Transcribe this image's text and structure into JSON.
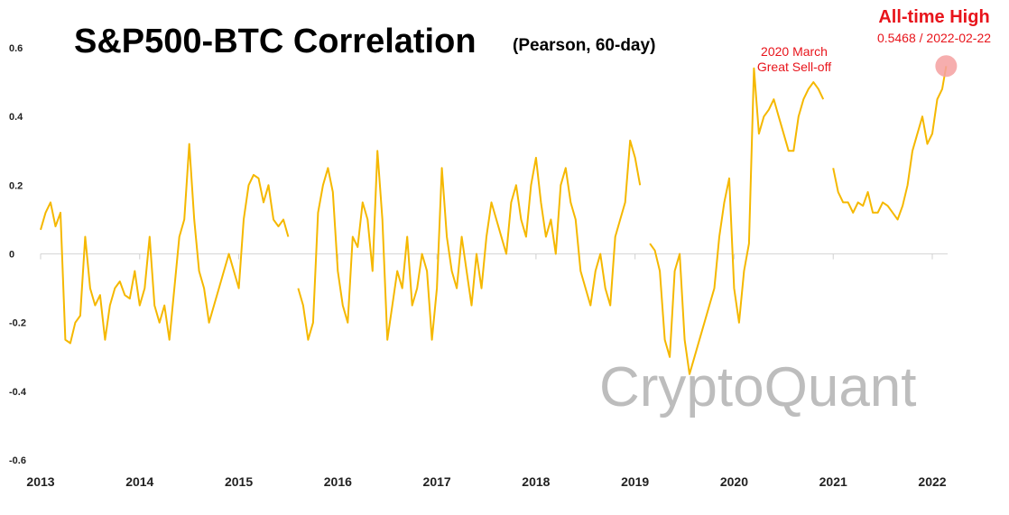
{
  "chart_data": {
    "type": "line",
    "title": "S&P500-BTC Correlation",
    "subtitle": "(Pearson, 60-day)",
    "xlabel": "",
    "ylabel": "",
    "xlim": [
      2013.0,
      2022.2
    ],
    "ylim": [
      -0.6,
      0.6
    ],
    "x_ticks": [
      "2013",
      "2014",
      "2015",
      "2016",
      "2017",
      "2018",
      "2019",
      "2020",
      "2021",
      "2022"
    ],
    "y_ticks": [
      "0.6",
      "0.4",
      "0.2",
      "0",
      "-0.2",
      "-0.4",
      "-0.6"
    ],
    "grid": false,
    "legend": "none",
    "line_color": "#f5b800",
    "annotations": {
      "ath_title": "All-time High",
      "ath_value": "0.5468 / 2022-02-22",
      "covid_line1": "2020 March",
      "covid_line2": "Great Sell-off",
      "watermark": "CryptoQuant"
    },
    "highlight_point": {
      "x": 2022.14,
      "y": 0.5468
    },
    "series": [
      {
        "x": [
          2013.0,
          2013.05,
          2013.1,
          2013.15,
          2013.2,
          2013.25,
          2013.3,
          2013.35,
          2013.4,
          2013.45,
          2013.5,
          2013.55,
          2013.6,
          2013.65,
          2013.7,
          2013.75,
          2013.8,
          2013.85,
          2013.9,
          2013.95,
          2014.0,
          2014.05,
          2014.1,
          2014.15,
          2014.2,
          2014.25,
          2014.3,
          2014.35,
          2014.4,
          2014.45,
          2014.5,
          2014.55,
          2014.6,
          2014.65,
          2014.7,
          2014.75,
          2014.8,
          2014.85,
          2014.9,
          2014.95,
          2015.0,
          2015.05,
          2015.1,
          2015.15,
          2015.2,
          2015.25,
          2015.3,
          2015.35,
          2015.4,
          2015.45,
          2015.5,
          2015.55,
          2015.6,
          2015.65,
          2015.7,
          2015.75,
          2015.8,
          2015.85,
          2015.9,
          2015.95,
          2016.0,
          2016.05,
          2016.1,
          2016.15,
          2016.2,
          2016.25,
          2016.3,
          2016.35,
          2016.4,
          2016.45,
          2016.5,
          2016.55,
          2016.6,
          2016.65,
          2016.7,
          2016.75,
          2016.8,
          2016.85,
          2016.9,
          2016.95,
          2017.0,
          2017.05,
          2017.1,
          2017.15,
          2017.2,
          2017.25,
          2017.3,
          2017.35,
          2017.4,
          2017.45,
          2017.5,
          2017.55,
          2017.6,
          2017.65,
          2017.7,
          2017.75,
          2017.8,
          2017.85,
          2017.9,
          2017.95,
          2018.0,
          2018.05,
          2018.1,
          2018.15,
          2018.2,
          2018.25,
          2018.3,
          2018.35,
          2018.4,
          2018.45,
          2018.5,
          2018.55,
          2018.6,
          2018.65,
          2018.7,
          2018.75,
          2018.8,
          2018.85,
          2018.9,
          2018.95,
          2019.0,
          2019.05,
          2019.1,
          2019.15,
          2019.2,
          2019.25,
          2019.3,
          2019.35,
          2019.4,
          2019.45,
          2019.5,
          2019.55,
          2019.6,
          2019.65,
          2019.7,
          2019.75,
          2019.8,
          2019.85,
          2019.9,
          2019.95,
          2020.0,
          2020.05,
          2020.1,
          2020.15,
          2020.2,
          2020.25,
          2020.3,
          2020.35,
          2020.4,
          2020.45,
          2020.5,
          2020.55,
          2020.6,
          2020.65,
          2020.7,
          2020.75,
          2020.8,
          2020.85,
          2020.9,
          2020.95,
          2021.0,
          2021.05,
          2021.1,
          2021.15,
          2021.2,
          2021.25,
          2021.3,
          2021.35,
          2021.4,
          2021.45,
          2021.5,
          2021.55,
          2021.6,
          2021.65,
          2021.7,
          2021.75,
          2021.8,
          2021.85,
          2021.9,
          2021.95,
          2022.0,
          2022.05,
          2022.1,
          2022.14
        ],
        "values": [
          0.07,
          0.12,
          0.15,
          0.08,
          0.12,
          -0.25,
          -0.26,
          -0.2,
          -0.18,
          0.05,
          -0.1,
          -0.15,
          -0.12,
          -0.25,
          -0.15,
          -0.1,
          -0.08,
          -0.12,
          -0.13,
          -0.05,
          -0.15,
          -0.1,
          0.05,
          -0.15,
          -0.2,
          -0.15,
          -0.25,
          -0.1,
          0.05,
          0.1,
          0.32,
          0.1,
          -0.05,
          -0.1,
          -0.2,
          -0.15,
          -0.1,
          -0.05,
          0.0,
          -0.05,
          -0.1,
          0.1,
          0.2,
          0.23,
          0.22,
          0.15,
          0.2,
          0.1,
          0.08,
          0.1,
          0.05,
          null,
          -0.1,
          -0.15,
          -0.25,
          -0.2,
          0.12,
          0.2,
          0.25,
          0.18,
          -0.05,
          -0.15,
          -0.2,
          0.05,
          0.02,
          0.15,
          0.1,
          -0.05,
          0.3,
          0.1,
          -0.25,
          -0.15,
          -0.05,
          -0.1,
          0.05,
          -0.15,
          -0.1,
          0.0,
          -0.05,
          -0.25,
          -0.1,
          0.25,
          0.05,
          -0.05,
          -0.1,
          0.05,
          -0.05,
          -0.15,
          0.0,
          -0.1,
          0.05,
          0.15,
          0.1,
          0.05,
          0.0,
          0.15,
          0.2,
          0.1,
          0.05,
          0.2,
          0.28,
          0.15,
          0.05,
          0.1,
          0.0,
          0.2,
          0.25,
          0.15,
          0.1,
          -0.05,
          -0.1,
          -0.15,
          -0.05,
          0.0,
          -0.1,
          -0.15,
          0.05,
          0.1,
          0.15,
          0.33,
          0.28,
          0.2,
          null,
          0.03,
          0.01,
          -0.05,
          -0.25,
          -0.3,
          -0.05,
          0.0,
          -0.25,
          -0.35,
          -0.3,
          -0.25,
          -0.2,
          -0.15,
          -0.1,
          0.05,
          0.15,
          0.22,
          -0.1,
          -0.2,
          -0.05,
          0.03,
          0.54,
          0.35,
          0.4,
          0.42,
          0.45,
          0.4,
          0.35,
          0.3,
          0.3,
          0.4,
          0.45,
          0.48,
          0.5,
          0.48,
          0.45,
          null,
          0.25,
          0.18,
          0.15,
          0.15,
          0.12,
          0.15,
          0.14,
          0.18,
          0.12,
          0.12,
          0.15,
          0.14,
          0.12,
          0.1,
          0.14,
          0.2,
          0.3,
          0.35,
          0.4,
          0.32,
          0.35,
          0.45,
          0.48,
          0.5468
        ]
      }
    ]
  }
}
